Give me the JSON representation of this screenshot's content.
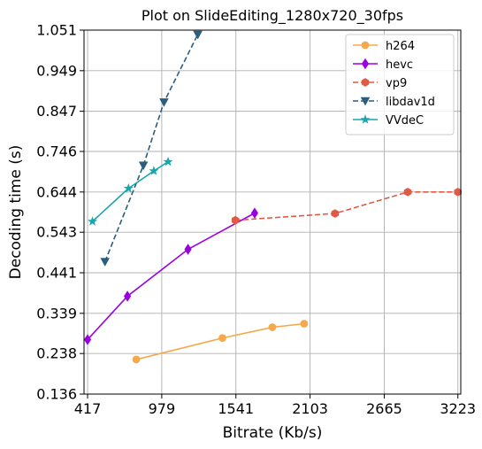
{
  "chart_data": {
    "type": "line",
    "title": "Plot on SlideEditing_1280x720_30fps",
    "xlabel": "Bitrate (Kb/s)",
    "ylabel": "Decoding time (s)",
    "xlim": [
      390,
      3245
    ],
    "ylim": [
      0.136,
      1.051
    ],
    "xticks": [
      417,
      979,
      1541,
      2103,
      2665,
      3223
    ],
    "xtick_labels": [
      "417",
      "979",
      "1541",
      "2103",
      "2665",
      "3223"
    ],
    "yticks": [
      0.136,
      0.238,
      0.339,
      0.441,
      0.543,
      0.644,
      0.746,
      0.847,
      0.949,
      1.051
    ],
    "ytick_labels": [
      "0.136",
      "0.238",
      "0.339",
      "0.441",
      "0.543",
      "0.644",
      "0.746",
      "0.847",
      "0.949",
      "1.051"
    ],
    "grid": true,
    "legend_position": "top-right",
    "series": [
      {
        "name": "h264",
        "color": "#f5a94e",
        "marker": "circle",
        "linestyle": "solid",
        "x": [
          786,
          1439,
          1817,
          2058
        ],
        "y": [
          0.223,
          0.277,
          0.304,
          0.313
        ]
      },
      {
        "name": "hevc",
        "color": "#9b00e0",
        "marker": "diamond",
        "linestyle": "solid",
        "x": [
          417,
          719,
          1178,
          1683
        ],
        "y": [
          0.273,
          0.382,
          0.5,
          0.591
        ]
      },
      {
        "name": "vp9",
        "color": "#e05a46",
        "marker": "hexagon",
        "linestyle": "dashed",
        "x": [
          1537,
          2292,
          2843,
          3223
        ],
        "y": [
          0.573,
          0.59,
          0.644,
          0.644
        ]
      },
      {
        "name": "libdav1d",
        "color": "#2a5d7e",
        "marker": "triangle-down",
        "linestyle": "dashed",
        "x": [
          549,
          840,
          996,
          1252
        ],
        "y": [
          0.469,
          0.711,
          0.87,
          1.04
        ]
      },
      {
        "name": "VVdeC",
        "color": "#1aa5ab",
        "marker": "star",
        "linestyle": "solid",
        "x": [
          454,
          727,
          919,
          1027
        ],
        "y": [
          0.57,
          0.653,
          0.697,
          0.72
        ]
      }
    ]
  }
}
